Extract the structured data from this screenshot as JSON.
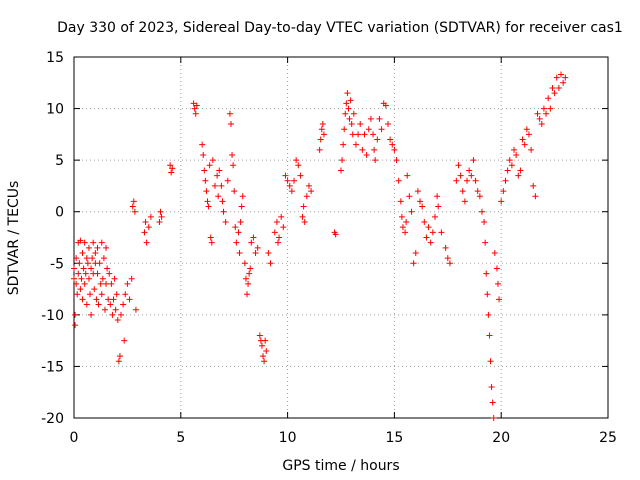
{
  "chart_data": {
    "type": "scatter",
    "title": "Day 330 of 2023, Sidereal Day-to-day VTEC variation (SDTVAR) for receiver cas1",
    "xlabel": "GPS time / hours",
    "ylabel": "SDTVAR / TECUs",
    "xlim": [
      0,
      25
    ],
    "ylim": [
      -20,
      15
    ],
    "xticks": [
      0,
      5,
      10,
      15,
      20,
      25
    ],
    "yticks": [
      -20,
      -15,
      -10,
      -5,
      0,
      5,
      10,
      15
    ],
    "xtick_labels": [
      "0",
      "5",
      "10",
      "15",
      "20",
      "25"
    ],
    "ytick_labels": [
      "-20",
      "-15",
      "-10",
      "-5",
      "0",
      "5",
      "10",
      "15"
    ],
    "grid": true,
    "marker": "+",
    "color": "#ff0000",
    "series": [
      {
        "name": "cas1",
        "points": [
          [
            0.0,
            -5.5
          ],
          [
            0.0,
            -6.5
          ],
          [
            0.05,
            -10.0
          ],
          [
            0.05,
            -11.0
          ],
          [
            0.1,
            -7.0
          ],
          [
            0.1,
            -4.5
          ],
          [
            0.15,
            -8.0
          ],
          [
            0.2,
            -6.0
          ],
          [
            0.2,
            -3.0
          ],
          [
            0.25,
            -5.0
          ],
          [
            0.3,
            -7.5
          ],
          [
            0.3,
            -2.8
          ],
          [
            0.35,
            -6.5
          ],
          [
            0.4,
            -4.0
          ],
          [
            0.4,
            -8.5
          ],
          [
            0.45,
            -5.5
          ],
          [
            0.5,
            -3.0
          ],
          [
            0.5,
            -7.0
          ],
          [
            0.55,
            -6.0
          ],
          [
            0.6,
            -4.5
          ],
          [
            0.6,
            -9.0
          ],
          [
            0.65,
            -5.0
          ],
          [
            0.7,
            -6.5
          ],
          [
            0.7,
            -3.5
          ],
          [
            0.75,
            -8.0
          ],
          [
            0.8,
            -5.5
          ],
          [
            0.8,
            -10.0
          ],
          [
            0.85,
            -4.5
          ],
          [
            0.9,
            -6.0
          ],
          [
            0.9,
            -3.0
          ],
          [
            0.95,
            -7.5
          ],
          [
            1.0,
            -5.0
          ],
          [
            1.0,
            -4.0
          ],
          [
            1.05,
            -8.5
          ],
          [
            1.1,
            -6.0
          ],
          [
            1.1,
            -3.5
          ],
          [
            1.15,
            -9.0
          ],
          [
            1.2,
            -5.0
          ],
          [
            1.25,
            -7.0
          ],
          [
            1.3,
            -3.0
          ],
          [
            1.3,
            -8.0
          ],
          [
            1.35,
            -6.5
          ],
          [
            1.4,
            -4.5
          ],
          [
            1.45,
            -9.5
          ],
          [
            1.5,
            -7.0
          ],
          [
            1.5,
            -3.5
          ],
          [
            1.55,
            -5.5
          ],
          [
            1.6,
            -8.5
          ],
          [
            1.65,
            -6.0
          ],
          [
            1.7,
            -9.0
          ],
          [
            1.75,
            -7.0
          ],
          [
            1.8,
            -10.0
          ],
          [
            1.85,
            -8.5
          ],
          [
            1.9,
            -6.5
          ],
          [
            1.95,
            -9.5
          ],
          [
            2.0,
            -8.0
          ],
          [
            2.05,
            -10.5
          ],
          [
            2.1,
            -14.5
          ],
          [
            2.15,
            -14.0
          ],
          [
            2.2,
            -10.0
          ],
          [
            2.3,
            -9.0
          ],
          [
            2.35,
            -12.5
          ],
          [
            2.4,
            -8.0
          ],
          [
            2.5,
            -7.0
          ],
          [
            2.6,
            -8.5
          ],
          [
            2.7,
            -6.5
          ],
          [
            2.75,
            0.5
          ],
          [
            2.8,
            1.0
          ],
          [
            2.85,
            0.0
          ],
          [
            2.9,
            -9.5
          ],
          [
            3.3,
            -2.0
          ],
          [
            3.35,
            -1.0
          ],
          [
            3.4,
            -3.0
          ],
          [
            3.5,
            -1.5
          ],
          [
            3.6,
            -0.5
          ],
          [
            4.0,
            -1.0
          ],
          [
            4.05,
            0.0
          ],
          [
            4.1,
            -0.5
          ],
          [
            4.5,
            4.5
          ],
          [
            4.55,
            3.8
          ],
          [
            4.6,
            4.2
          ],
          [
            5.6,
            10.5
          ],
          [
            5.65,
            10.0
          ],
          [
            5.7,
            9.5
          ],
          [
            5.75,
            10.3
          ],
          [
            6.0,
            6.5
          ],
          [
            6.05,
            5.5
          ],
          [
            6.1,
            4.0
          ],
          [
            6.15,
            3.0
          ],
          [
            6.2,
            2.0
          ],
          [
            6.25,
            1.0
          ],
          [
            6.3,
            0.5
          ],
          [
            6.35,
            4.5
          ],
          [
            6.4,
            -2.5
          ],
          [
            6.45,
            -3.0
          ],
          [
            6.5,
            5.0
          ],
          [
            6.6,
            2.5
          ],
          [
            6.7,
            3.5
          ],
          [
            6.75,
            1.5
          ],
          [
            6.8,
            4.0
          ],
          [
            6.9,
            2.5
          ],
          [
            6.95,
            1.0
          ],
          [
            7.0,
            0.0
          ],
          [
            7.1,
            -1.0
          ],
          [
            7.2,
            3.0
          ],
          [
            7.3,
            9.5
          ],
          [
            7.35,
            8.5
          ],
          [
            7.4,
            5.5
          ],
          [
            7.45,
            4.5
          ],
          [
            7.5,
            2.0
          ],
          [
            7.55,
            -1.5
          ],
          [
            7.6,
            -3.0
          ],
          [
            7.7,
            -2.0
          ],
          [
            7.75,
            -4.0
          ],
          [
            7.8,
            -1.0
          ],
          [
            7.85,
            0.5
          ],
          [
            7.9,
            1.5
          ],
          [
            8.0,
            -5.0
          ],
          [
            8.05,
            -6.5
          ],
          [
            8.1,
            -8.0
          ],
          [
            8.15,
            -7.0
          ],
          [
            8.2,
            -6.0
          ],
          [
            8.25,
            -5.5
          ],
          [
            8.3,
            -3.0
          ],
          [
            8.4,
            -2.5
          ],
          [
            8.5,
            -4.0
          ],
          [
            8.6,
            -3.5
          ],
          [
            8.7,
            -12.0
          ],
          [
            8.75,
            -12.5
          ],
          [
            8.8,
            -13.0
          ],
          [
            8.85,
            -14.0
          ],
          [
            8.9,
            -14.5
          ],
          [
            8.95,
            -12.5
          ],
          [
            9.0,
            -13.5
          ],
          [
            9.1,
            -4.0
          ],
          [
            9.2,
            -5.0
          ],
          [
            9.4,
            -2.0
          ],
          [
            9.5,
            -1.0
          ],
          [
            9.55,
            -3.0
          ],
          [
            9.6,
            -2.5
          ],
          [
            9.7,
            -0.5
          ],
          [
            9.8,
            -1.5
          ],
          [
            9.9,
            3.5
          ],
          [
            10.0,
            3.0
          ],
          [
            10.1,
            2.5
          ],
          [
            10.2,
            2.0
          ],
          [
            10.3,
            3.0
          ],
          [
            10.4,
            5.0
          ],
          [
            10.5,
            4.5
          ],
          [
            10.6,
            3.5
          ],
          [
            10.7,
            -0.5
          ],
          [
            10.75,
            0.5
          ],
          [
            10.8,
            -1.0
          ],
          [
            10.9,
            1.5
          ],
          [
            11.0,
            2.5
          ],
          [
            11.1,
            2.0
          ],
          [
            11.5,
            6.0
          ],
          [
            11.55,
            7.0
          ],
          [
            11.6,
            8.0
          ],
          [
            11.65,
            8.5
          ],
          [
            11.7,
            7.5
          ],
          [
            12.2,
            -2.0
          ],
          [
            12.25,
            -2.2
          ],
          [
            12.5,
            4.0
          ],
          [
            12.55,
            5.0
          ],
          [
            12.6,
            6.5
          ],
          [
            12.65,
            8.0
          ],
          [
            12.7,
            9.5
          ],
          [
            12.75,
            10.5
          ],
          [
            12.8,
            11.5
          ],
          [
            12.85,
            10.0
          ],
          [
            12.9,
            9.0
          ],
          [
            12.95,
            10.8
          ],
          [
            13.0,
            8.5
          ],
          [
            13.05,
            7.5
          ],
          [
            13.1,
            9.5
          ],
          [
            13.2,
            6.5
          ],
          [
            13.3,
            7.5
          ],
          [
            13.4,
            8.5
          ],
          [
            13.5,
            6.0
          ],
          [
            13.6,
            7.5
          ],
          [
            13.7,
            5.5
          ],
          [
            13.8,
            8.0
          ],
          [
            13.9,
            9.0
          ],
          [
            14.0,
            7.5
          ],
          [
            14.05,
            6.0
          ],
          [
            14.1,
            5.0
          ],
          [
            14.2,
            7.0
          ],
          [
            14.3,
            9.0
          ],
          [
            14.4,
            8.0
          ],
          [
            14.5,
            10.5
          ],
          [
            14.6,
            10.3
          ],
          [
            14.7,
            8.5
          ],
          [
            14.8,
            7.0
          ],
          [
            14.9,
            6.5
          ],
          [
            15.0,
            6.0
          ],
          [
            15.1,
            5.0
          ],
          [
            15.2,
            3.0
          ],
          [
            15.3,
            1.0
          ],
          [
            15.35,
            -0.5
          ],
          [
            15.4,
            -1.5
          ],
          [
            15.5,
            -2.0
          ],
          [
            15.55,
            -1.0
          ],
          [
            15.6,
            3.5
          ],
          [
            15.7,
            1.5
          ],
          [
            15.8,
            0.0
          ],
          [
            15.9,
            -5.0
          ],
          [
            16.0,
            -4.0
          ],
          [
            16.1,
            2.0
          ],
          [
            16.2,
            1.0
          ],
          [
            16.3,
            0.5
          ],
          [
            16.4,
            -1.0
          ],
          [
            16.5,
            -2.5
          ],
          [
            16.6,
            -1.5
          ],
          [
            16.7,
            -3.0
          ],
          [
            16.8,
            -2.0
          ],
          [
            16.9,
            -0.5
          ],
          [
            17.0,
            1.5
          ],
          [
            17.05,
            0.5
          ],
          [
            17.2,
            -2.0
          ],
          [
            17.4,
            -3.5
          ],
          [
            17.5,
            -4.5
          ],
          [
            17.6,
            -5.0
          ],
          [
            17.9,
            3.0
          ],
          [
            18.0,
            4.5
          ],
          [
            18.1,
            3.5
          ],
          [
            18.2,
            2.0
          ],
          [
            18.3,
            1.0
          ],
          [
            18.4,
            3.0
          ],
          [
            18.5,
            4.0
          ],
          [
            18.6,
            3.5
          ],
          [
            18.7,
            5.0
          ],
          [
            18.8,
            3.0
          ],
          [
            18.9,
            2.0
          ],
          [
            19.0,
            1.5
          ],
          [
            19.1,
            0.0
          ],
          [
            19.2,
            -1.0
          ],
          [
            19.25,
            -3.0
          ],
          [
            19.3,
            -6.0
          ],
          [
            19.35,
            -8.0
          ],
          [
            19.4,
            -10.0
          ],
          [
            19.45,
            -12.0
          ],
          [
            19.5,
            -14.5
          ],
          [
            19.55,
            -17.0
          ],
          [
            19.6,
            -18.5
          ],
          [
            19.65,
            -20.0
          ],
          [
            19.7,
            -4.0
          ],
          [
            19.8,
            -5.5
          ],
          [
            19.85,
            -7.0
          ],
          [
            19.9,
            -8.5
          ],
          [
            20.0,
            1.0
          ],
          [
            20.1,
            2.0
          ],
          [
            20.2,
            3.0
          ],
          [
            20.3,
            4.0
          ],
          [
            20.4,
            5.0
          ],
          [
            20.5,
            4.5
          ],
          [
            20.6,
            6.0
          ],
          [
            20.7,
            5.5
          ],
          [
            20.8,
            3.5
          ],
          [
            20.9,
            4.0
          ],
          [
            21.0,
            7.0
          ],
          [
            21.1,
            6.5
          ],
          [
            21.2,
            8.0
          ],
          [
            21.3,
            7.5
          ],
          [
            21.4,
            6.0
          ],
          [
            21.5,
            2.5
          ],
          [
            21.6,
            1.5
          ],
          [
            21.7,
            9.5
          ],
          [
            21.8,
            9.0
          ],
          [
            21.9,
            8.5
          ],
          [
            22.0,
            10.0
          ],
          [
            22.1,
            9.5
          ],
          [
            22.2,
            11.0
          ],
          [
            22.3,
            10.0
          ],
          [
            22.4,
            12.0
          ],
          [
            22.5,
            11.5
          ],
          [
            22.6,
            13.0
          ],
          [
            22.7,
            12.0
          ],
          [
            22.8,
            13.3
          ],
          [
            22.9,
            12.5
          ],
          [
            23.0,
            13.0
          ]
        ]
      }
    ]
  }
}
